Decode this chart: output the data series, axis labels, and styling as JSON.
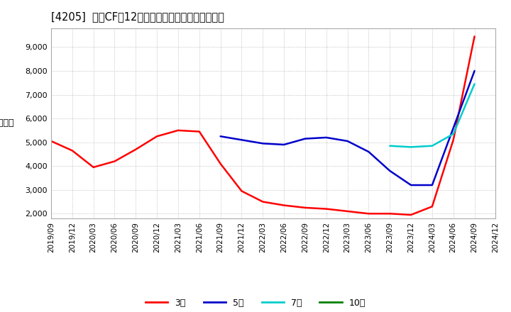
{
  "title": "[4205]  投資CFの12か月移動合計の標準偏差の推移",
  "ylabel": "（百万円）",
  "ylim": [
    1800,
    9800
  ],
  "yticks": [
    2000,
    3000,
    4000,
    5000,
    6000,
    7000,
    8000,
    9000
  ],
  "background_color": "#ffffff",
  "plot_bg_color": "#ffffff",
  "grid_color": "#aaaaaa",
  "series": [
    {
      "name": "3年",
      "color": "#ff0000",
      "dates": [
        "2019/09",
        "2019/12",
        "2020/03",
        "2020/06",
        "2020/09",
        "2020/12",
        "2021/03",
        "2021/06",
        "2021/09",
        "2021/12",
        "2022/03",
        "2022/06",
        "2022/09",
        "2022/12",
        "2023/03",
        "2023/06",
        "2023/09",
        "2023/12",
        "2024/03",
        "2024/06",
        "2024/09"
      ],
      "values": [
        5050,
        4650,
        3950,
        4200,
        4700,
        5250,
        5500,
        5450,
        4100,
        2950,
        2500,
        2350,
        2250,
        2200,
        2100,
        2000,
        2000,
        1950,
        2300,
        5100,
        9450
      ]
    },
    {
      "name": "5年",
      "color": "#0000cc",
      "dates": [
        "2021/09",
        "2021/12",
        "2022/03",
        "2022/06",
        "2022/09",
        "2022/12",
        "2023/03",
        "2023/06",
        "2023/09",
        "2023/12",
        "2024/03",
        "2024/06",
        "2024/09"
      ],
      "values": [
        5250,
        5100,
        4950,
        4900,
        5150,
        5200,
        5050,
        4600,
        3800,
        3200,
        3200,
        5600,
        8000
      ]
    },
    {
      "name": "7年",
      "color": "#00cccc",
      "dates": [
        "2023/09",
        "2023/12",
        "2024/03",
        "2024/06",
        "2024/09"
      ],
      "values": [
        4850,
        4800,
        4850,
        5350,
        7450
      ]
    },
    {
      "name": "10年",
      "color": "#008000",
      "dates": [],
      "values": []
    }
  ],
  "legend_entries": [
    "3年",
    "5年",
    "7年",
    "10年"
  ],
  "legend_colors": [
    "#ff0000",
    "#0000cc",
    "#00cccc",
    "#008000"
  ],
  "xticklabels": [
    "2019/09",
    "2019/12",
    "2020/03",
    "2020/06",
    "2020/09",
    "2020/12",
    "2021/03",
    "2021/06",
    "2021/09",
    "2021/12",
    "2022/03",
    "2022/06",
    "2022/09",
    "2022/12",
    "2023/03",
    "2023/06",
    "2023/09",
    "2023/12",
    "2024/03",
    "2024/06",
    "2024/09",
    "2024/12"
  ]
}
